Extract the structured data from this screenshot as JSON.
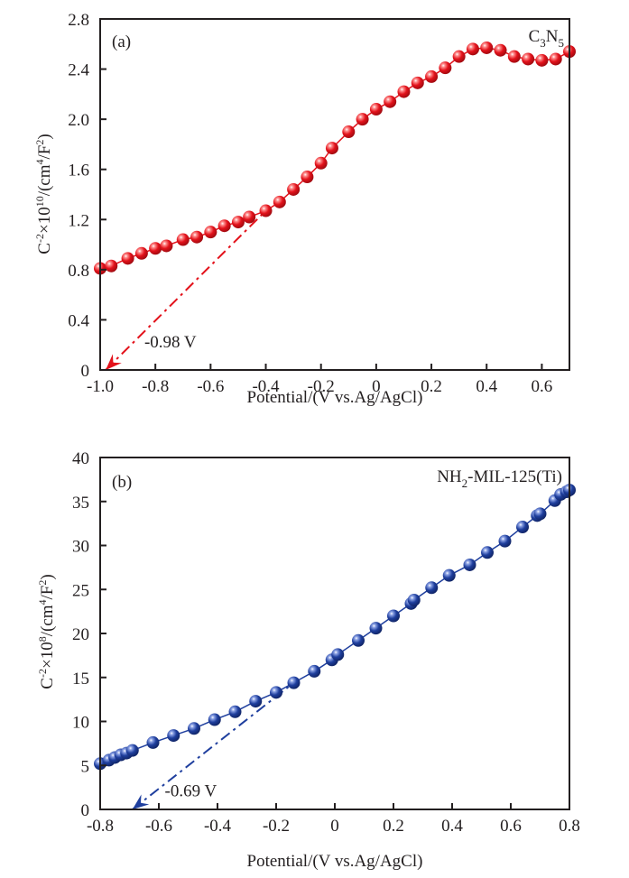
{
  "chart_data": [
    {
      "type": "scatter",
      "panel_label": "(a)",
      "legend": "C3N5",
      "legend_parts": {
        "base1": "C",
        "sub1": "3",
        "base2": "N",
        "sub2": "5"
      },
      "legend_position": "top-right",
      "xlabel": "Potential/(V vs.Ag/AgCl)",
      "ylabel_parts": {
        "base": "C",
        "sup1": "-2",
        "mid": "×10",
        "sup2": "10",
        "unit": "/(cm",
        "sup3": "4",
        "unit2": "/F",
        "sup4": "2",
        "end": ")"
      },
      "xlim": [
        -1.0,
        0.7
      ],
      "ylim": [
        0,
        2.8
      ],
      "xticks": [
        -1.0,
        -0.8,
        -0.6,
        -0.4,
        -0.2,
        0,
        0.2,
        0.4,
        0.6
      ],
      "xtick_labels": [
        "-1.0",
        "-0.8",
        "-0.6",
        "-0.4",
        "-0.2",
        "0",
        "0.2",
        "0.4",
        "0.6"
      ],
      "yticks": [
        0,
        0.4,
        0.8,
        1.2,
        1.6,
        2.0,
        2.4,
        2.8
      ],
      "ytick_labels": [
        "0",
        "0.4",
        "0.8",
        "1.2",
        "1.6",
        "2.0",
        "2.4",
        "2.8"
      ],
      "grid": false,
      "color": "#e3121b",
      "x": [
        -1.0,
        -0.96,
        -0.9,
        -0.85,
        -0.8,
        -0.76,
        -0.7,
        -0.65,
        -0.6,
        -0.55,
        -0.5,
        -0.46,
        -0.4,
        -0.35,
        -0.3,
        -0.25,
        -0.2,
        -0.16,
        -0.1,
        -0.05,
        0.0,
        0.05,
        0.1,
        0.15,
        0.2,
        0.25,
        0.3,
        0.35,
        0.4,
        0.45,
        0.5,
        0.55,
        0.6,
        0.65,
        0.7
      ],
      "y": [
        0.81,
        0.83,
        0.89,
        0.93,
        0.97,
        0.99,
        1.04,
        1.06,
        1.1,
        1.15,
        1.18,
        1.22,
        1.27,
        1.34,
        1.44,
        1.54,
        1.65,
        1.77,
        1.9,
        2.0,
        2.08,
        2.14,
        2.22,
        2.29,
        2.34,
        2.41,
        2.5,
        2.56,
        2.57,
        2.55,
        2.5,
        2.48,
        2.47,
        2.48,
        2.54
      ],
      "fit_line": {
        "x": [
          -0.98,
          -0.4
        ],
        "y": [
          0,
          1.27
        ],
        "style": "dash-dot",
        "arrow": "start"
      },
      "annotation": "-0.98 V",
      "annotation_anchor": {
        "x": -0.84,
        "y": 0.18
      }
    },
    {
      "type": "scatter",
      "panel_label": "(b)",
      "legend": "NH2-MIL-125(Ti)",
      "legend_parts": {
        "base1": "NH",
        "sub1": "2",
        "rest": "-MIL-125(Ti)"
      },
      "legend_position": "top-right",
      "xlabel": "Potential/(V vs.Ag/AgCl)",
      "ylabel_parts": {
        "base": "C",
        "sup1": "-2",
        "mid": "×10",
        "sup2": "8",
        "unit": "/(cm",
        "sup3": "4",
        "unit2": "/F",
        "sup4": "2",
        "end": ")"
      },
      "xlim": [
        -0.8,
        0.8
      ],
      "ylim": [
        0,
        40
      ],
      "xticks": [
        -0.8,
        -0.6,
        -0.4,
        -0.2,
        0,
        0.2,
        0.4,
        0.6,
        0.8
      ],
      "xtick_labels": [
        "-0.8",
        "-0.6",
        "-0.4",
        "-0.2",
        "0",
        "0.2",
        "0.4",
        "0.6",
        "0.8"
      ],
      "yticks": [
        0,
        5,
        10,
        15,
        20,
        25,
        30,
        35,
        40
      ],
      "ytick_labels": [
        "0",
        "5",
        "10",
        "15",
        "20",
        "25",
        "30",
        "35",
        "40"
      ],
      "grid": false,
      "color": "#1f3f9e",
      "x": [
        -0.8,
        -0.77,
        -0.75,
        -0.73,
        -0.71,
        -0.69,
        -0.62,
        -0.55,
        -0.48,
        -0.41,
        -0.34,
        -0.27,
        -0.2,
        -0.14,
        -0.07,
        -0.01,
        0.01,
        0.08,
        0.14,
        0.2,
        0.26,
        0.27,
        0.33,
        0.39,
        0.46,
        0.52,
        0.58,
        0.64,
        0.69,
        0.7,
        0.75,
        0.77,
        0.79,
        0.8
      ],
      "y": [
        5.2,
        5.6,
        5.9,
        6.2,
        6.4,
        6.7,
        7.6,
        8.4,
        9.2,
        10.2,
        11.1,
        12.3,
        13.3,
        14.4,
        15.7,
        17.0,
        17.6,
        19.2,
        20.6,
        22.0,
        23.4,
        23.8,
        25.2,
        26.6,
        27.8,
        29.2,
        30.5,
        32.1,
        33.4,
        33.6,
        35.1,
        35.8,
        36.1,
        36.3
      ],
      "fit_line": {
        "x": [
          -0.69,
          -0.14
        ],
        "y": [
          0,
          14.4
        ],
        "style": "dash-dot",
        "arrow": "start"
      },
      "annotation": "-0.69 V",
      "annotation_anchor": {
        "x": -0.58,
        "y": 1.5
      }
    }
  ]
}
